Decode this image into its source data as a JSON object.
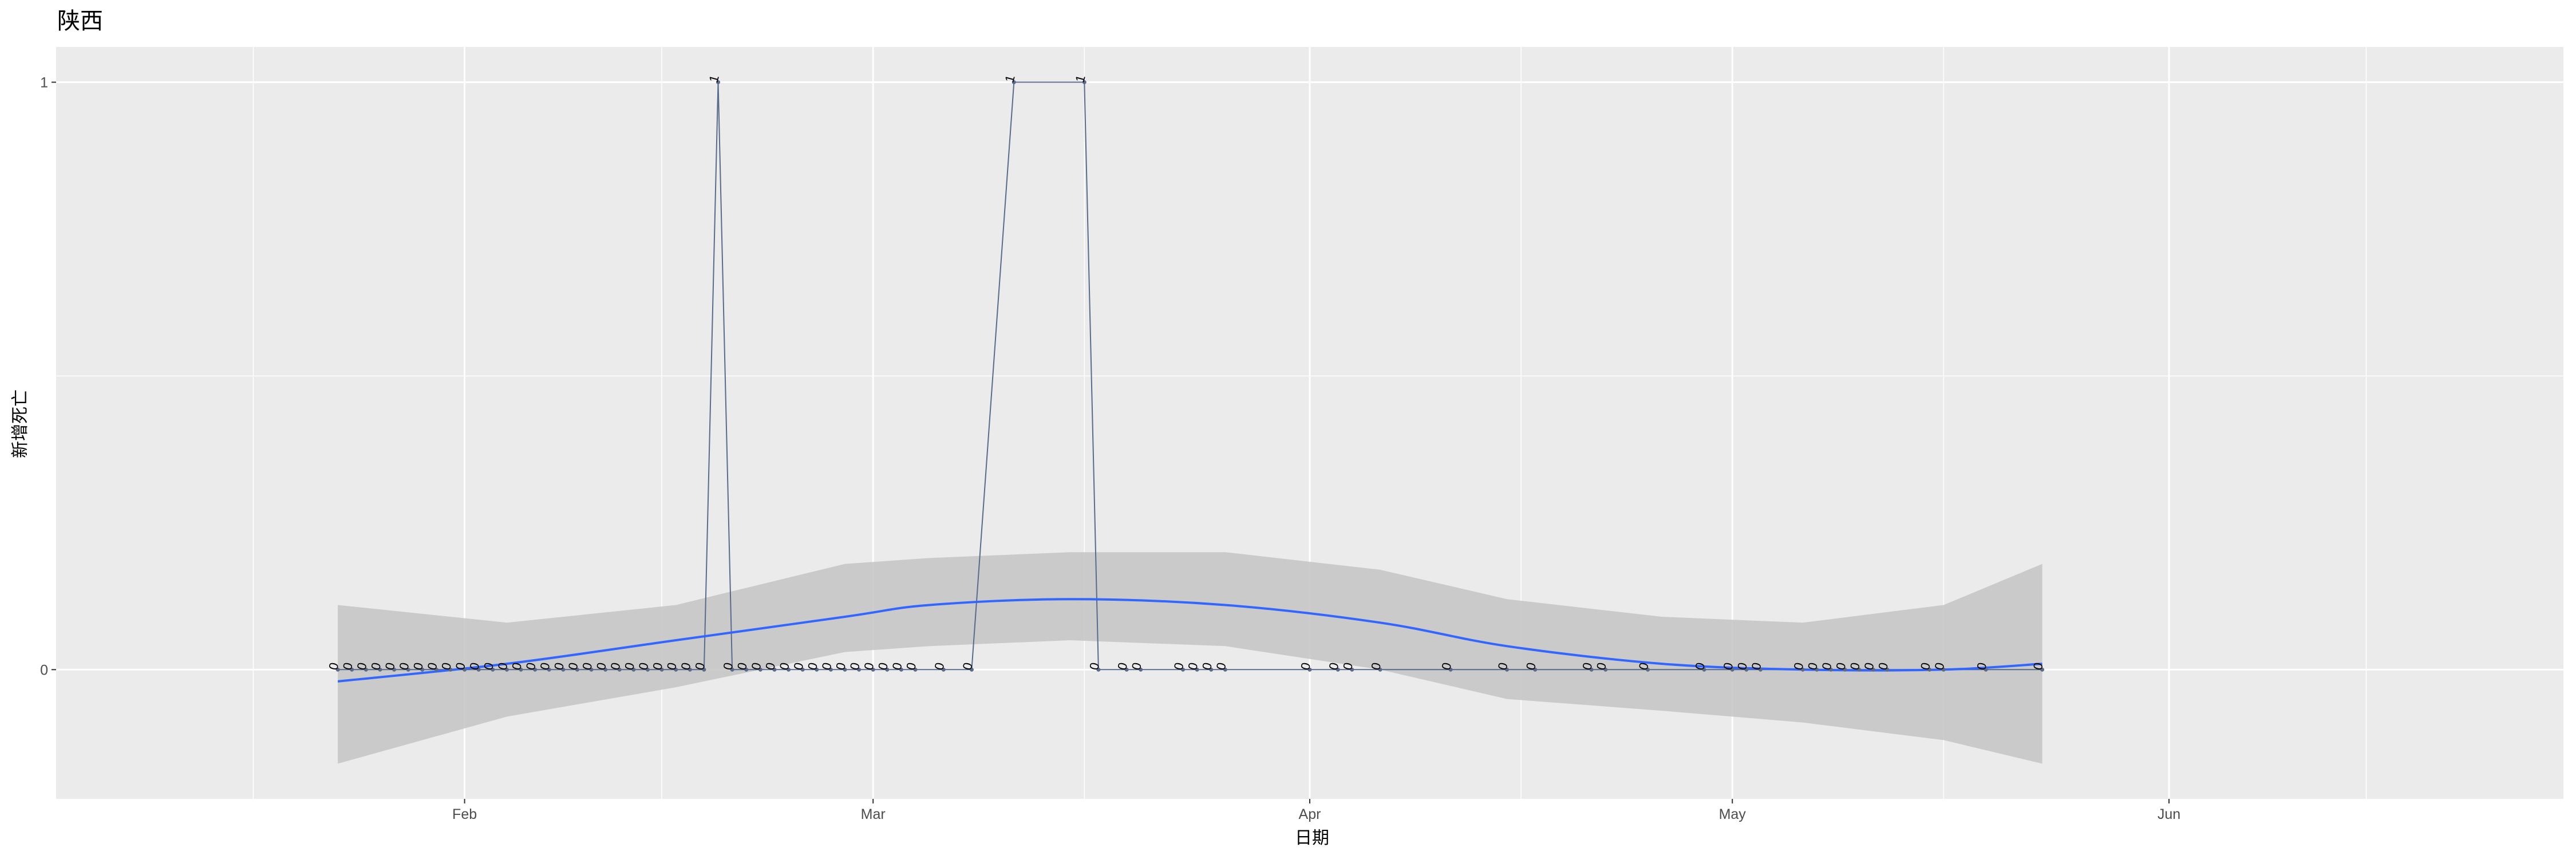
{
  "chart_data": {
    "type": "line",
    "title": "陕西",
    "xlabel": "日期",
    "ylabel": "新增死亡",
    "x_ticks": [
      "Feb",
      "Mar",
      "Apr",
      "May",
      "Jun"
    ],
    "x_tick_dates": [
      "2020-02-01",
      "2020-03-01",
      "2020-04-01",
      "2020-05-01",
      "2020-06-01"
    ],
    "y_ticks": [
      0,
      1
    ],
    "xlim": [
      "2020-01-03",
      "2020-06-29"
    ],
    "ylim": [
      -0.22,
      1.06
    ],
    "grid": true,
    "colors": {
      "line": "#5a6a8a",
      "smooth": "#3366ff",
      "ribbon": "#c4c4c4",
      "panel": "#ebebeb",
      "grid": "#ffffff"
    },
    "series": [
      {
        "x": [
          "2020-01-23",
          "2020-01-24",
          "2020-01-25",
          "2020-01-26",
          "2020-01-27",
          "2020-01-28",
          "2020-01-29",
          "2020-01-30",
          "2020-01-31",
          "2020-02-01",
          "2020-02-02",
          "2020-02-03",
          "2020-02-04",
          "2020-02-05",
          "2020-02-06",
          "2020-02-07",
          "2020-02-08",
          "2020-02-09",
          "2020-02-10",
          "2020-02-11",
          "2020-02-12",
          "2020-02-13",
          "2020-02-14",
          "2020-02-15",
          "2020-02-16",
          "2020-02-17",
          "2020-02-18",
          "2020-02-19",
          "2020-02-20",
          "2020-02-21",
          "2020-02-22",
          "2020-02-23",
          "2020-02-24",
          "2020-02-25",
          "2020-02-26",
          "2020-02-27",
          "2020-02-28",
          "2020-02-29",
          "2020-03-01",
          "2020-03-02",
          "2020-03-03",
          "2020-03-04",
          "2020-03-06",
          "2020-03-08",
          "2020-03-11",
          "2020-03-16",
          "2020-03-17",
          "2020-03-19",
          "2020-03-20",
          "2020-03-23",
          "2020-03-24",
          "2020-03-25",
          "2020-03-26",
          "2020-04-01",
          "2020-04-03",
          "2020-04-04",
          "2020-04-06",
          "2020-04-11",
          "2020-04-15",
          "2020-04-17",
          "2020-04-21",
          "2020-04-22",
          "2020-04-25",
          "2020-04-29",
          "2020-05-01",
          "2020-05-02",
          "2020-05-03",
          "2020-05-06",
          "2020-05-07",
          "2020-05-08",
          "2020-05-09",
          "2020-05-10",
          "2020-05-11",
          "2020-05-12",
          "2020-05-15",
          "2020-05-16",
          "2020-05-19",
          "2020-05-23"
        ],
        "y": [
          0,
          0,
          0,
          0,
          0,
          0,
          0,
          0,
          0,
          0,
          0,
          0,
          0,
          0,
          0,
          0,
          0,
          0,
          0,
          0,
          0,
          0,
          0,
          0,
          0,
          0,
          0,
          1,
          0,
          0,
          0,
          0,
          0,
          0,
          0,
          0,
          0,
          0,
          0,
          0,
          0,
          0,
          0,
          0,
          1,
          1,
          0,
          0,
          0,
          0,
          0,
          0,
          0,
          0,
          0,
          0,
          0,
          0,
          0,
          0,
          0,
          0,
          0,
          0,
          0,
          0,
          0,
          0,
          0,
          0,
          0,
          0,
          0,
          0,
          0,
          0,
          0,
          0
        ],
        "labels": [
          "0",
          "0",
          "0",
          "0",
          "0",
          "0",
          "0",
          "0",
          "0",
          "0",
          "0",
          "0",
          "0",
          "0",
          "0",
          "0",
          "0",
          "0",
          "0",
          "0",
          "0",
          "0",
          "0",
          "0",
          "0",
          "0",
          "0",
          "1",
          "0",
          "0",
          "0",
          "0",
          "0",
          "0",
          "0",
          "0",
          "0",
          "0",
          "0",
          "0",
          "0",
          "0",
          "0",
          "0",
          "1",
          "1",
          "0",
          "0",
          "0",
          "0",
          "0",
          "0",
          "0",
          "0",
          "0",
          "0",
          "0",
          "0",
          "0",
          "0",
          "0",
          "0",
          "0",
          "0",
          "0",
          "0",
          "0",
          "0",
          "0",
          "0",
          "0",
          "0",
          "0",
          "0",
          "0",
          "0",
          "0",
          "0"
        ]
      }
    ],
    "smooth": {
      "x": [
        "2020-01-23",
        "2020-02-04",
        "2020-02-16",
        "2020-02-28",
        "2020-03-05",
        "2020-03-15",
        "2020-03-26",
        "2020-04-06",
        "2020-04-15",
        "2020-04-26",
        "2020-05-06",
        "2020-05-16",
        "2020-05-23"
      ],
      "y": [
        -0.02,
        0.01,
        0.05,
        0.09,
        0.11,
        0.12,
        0.11,
        0.08,
        0.04,
        0.01,
        0.0,
        0.0,
        0.01
      ],
      "lower": [
        -0.16,
        -0.08,
        -0.03,
        0.03,
        0.04,
        0.05,
        0.04,
        0.0,
        -0.05,
        -0.07,
        -0.09,
        -0.12,
        -0.16
      ],
      "upper": [
        0.11,
        0.08,
        0.11,
        0.18,
        0.19,
        0.2,
        0.2,
        0.17,
        0.12,
        0.09,
        0.08,
        0.11,
        0.18
      ]
    }
  }
}
